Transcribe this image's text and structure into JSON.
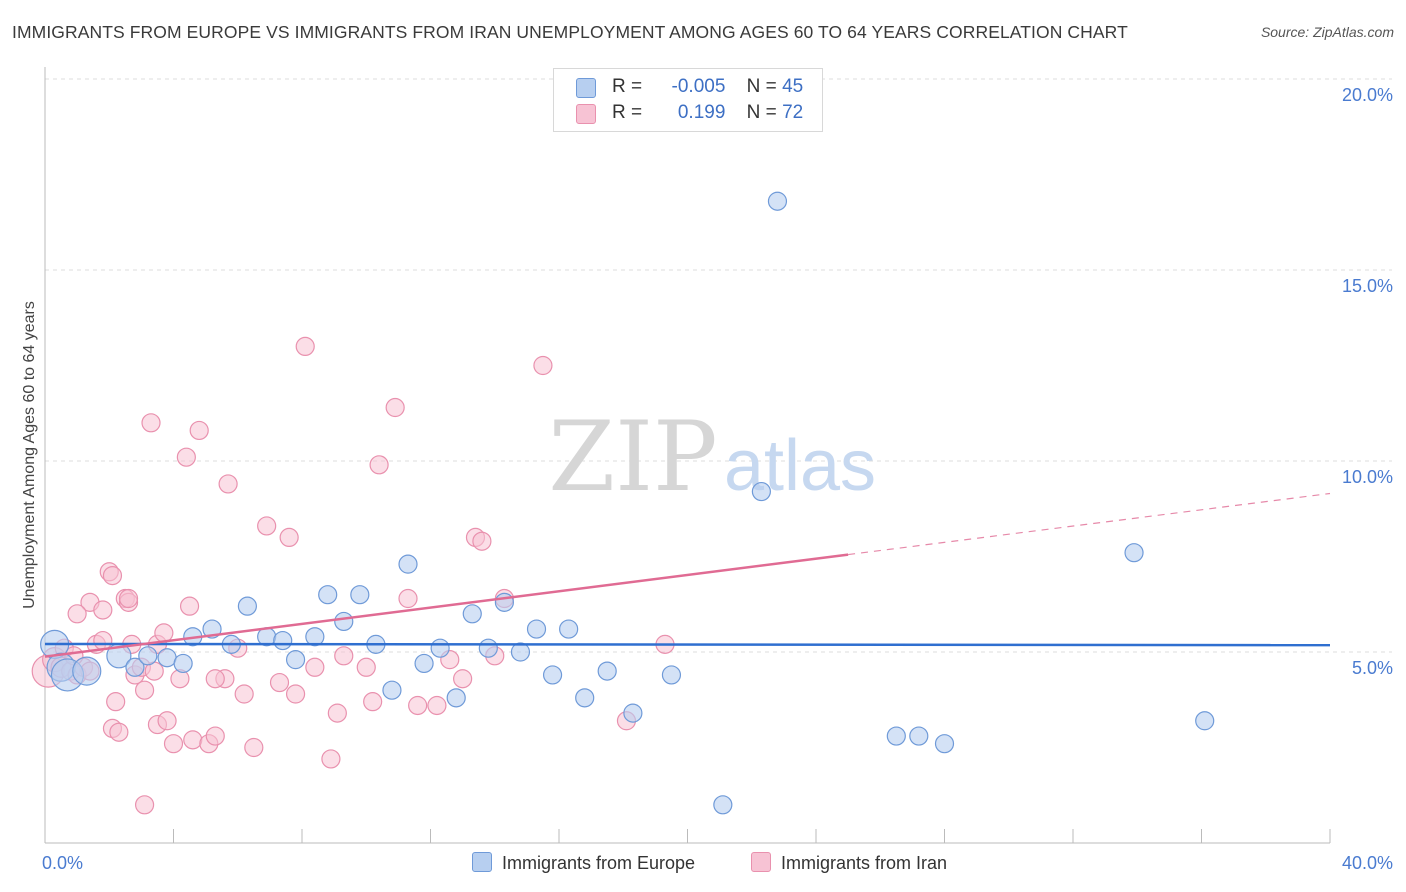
{
  "header": {
    "title": "IMMIGRANTS FROM EUROPE VS IMMIGRANTS FROM IRAN UNEMPLOYMENT AMONG AGES 60 TO 64 YEARS CORRELATION CHART",
    "source": "Source: ZipAtlas.com"
  },
  "legend_top": {
    "row1": {
      "r_label": "R =",
      "r_value": "-0.005",
      "n_label": "N =",
      "n_value": "45"
    },
    "row2": {
      "r_label": "R =",
      "r_value": "0.199",
      "n_label": "N =",
      "n_value": "72"
    }
  },
  "legend_bottom": {
    "europe": "Immigrants from Europe",
    "iran": "Immigrants from Iran"
  },
  "watermark": {
    "zip": "ZIP",
    "atlas": "atlas"
  },
  "colors": {
    "europe_fill": "#b7cff0",
    "europe_stroke": "#6f9ad8",
    "europe_line": "#2f6fd0",
    "iran_fill": "#f7c3d4",
    "iran_stroke": "#e991ae",
    "iran_line": "#e06b93",
    "tick_label": "#4a7bd0",
    "grid": "#dcdcdc"
  },
  "chart_data": {
    "type": "scatter",
    "title": "IMMIGRANTS FROM EUROPE VS IMMIGRANTS FROM IRAN UNEMPLOYMENT AMONG AGES 60 TO 64 YEARS CORRELATION CHART",
    "xlabel": "",
    "ylabel": "Unemployment Among Ages 60 to 64 years",
    "xlim": [
      0,
      40
    ],
    "ylim": [
      0,
      20
    ],
    "x_tick_labels": [
      "0.0%",
      "40.0%"
    ],
    "y_ticks": [
      5,
      10,
      15,
      20
    ],
    "y_tick_labels": [
      "5.0%",
      "10.0%",
      "15.0%",
      "20.0%"
    ],
    "series": [
      {
        "name": "Immigrants from Europe",
        "r": -0.005,
        "n": 45,
        "trend": {
          "x0": 0,
          "y0": 5.21,
          "x1": 40,
          "y1": 5.18
        },
        "points": [
          {
            "x": 0.3,
            "y": 5.2,
            "size": 14
          },
          {
            "x": 0.5,
            "y": 4.6,
            "size": 14
          },
          {
            "x": 0.7,
            "y": 4.4,
            "size": 16
          },
          {
            "x": 1.3,
            "y": 4.5,
            "size": 14
          },
          {
            "x": 2.3,
            "y": 4.9,
            "size": 12
          },
          {
            "x": 2.8,
            "y": 4.6,
            "size": 9
          },
          {
            "x": 3.2,
            "y": 4.9,
            "size": 9
          },
          {
            "x": 3.8,
            "y": 4.85,
            "size": 9
          },
          {
            "x": 4.3,
            "y": 4.7,
            "size": 9
          },
          {
            "x": 4.6,
            "y": 5.4,
            "size": 9
          },
          {
            "x": 5.2,
            "y": 5.6,
            "size": 9
          },
          {
            "x": 5.8,
            "y": 5.2,
            "size": 9
          },
          {
            "x": 6.3,
            "y": 6.2,
            "size": 9
          },
          {
            "x": 6.9,
            "y": 5.4,
            "size": 9
          },
          {
            "x": 7.4,
            "y": 5.3,
            "size": 9
          },
          {
            "x": 7.8,
            "y": 4.8,
            "size": 9
          },
          {
            "x": 8.4,
            "y": 5.4,
            "size": 9
          },
          {
            "x": 8.8,
            "y": 6.5,
            "size": 9
          },
          {
            "x": 9.3,
            "y": 5.8,
            "size": 9
          },
          {
            "x": 9.8,
            "y": 6.5,
            "size": 9
          },
          {
            "x": 10.3,
            "y": 5.2,
            "size": 9
          },
          {
            "x": 10.8,
            "y": 4.0,
            "size": 9
          },
          {
            "x": 11.3,
            "y": 7.3,
            "size": 9
          },
          {
            "x": 11.8,
            "y": 4.7,
            "size": 9
          },
          {
            "x": 12.3,
            "y": 5.1,
            "size": 9
          },
          {
            "x": 12.8,
            "y": 3.8,
            "size": 9
          },
          {
            "x": 13.3,
            "y": 6.0,
            "size": 9
          },
          {
            "x": 13.8,
            "y": 5.1,
            "size": 9
          },
          {
            "x": 14.3,
            "y": 6.3,
            "size": 9
          },
          {
            "x": 14.8,
            "y": 5.0,
            "size": 9
          },
          {
            "x": 15.3,
            "y": 5.6,
            "size": 9
          },
          {
            "x": 15.8,
            "y": 4.4,
            "size": 9
          },
          {
            "x": 16.3,
            "y": 5.6,
            "size": 9
          },
          {
            "x": 16.8,
            "y": 3.8,
            "size": 9
          },
          {
            "x": 17.5,
            "y": 4.5,
            "size": 9
          },
          {
            "x": 18.3,
            "y": 3.4,
            "size": 9
          },
          {
            "x": 19.5,
            "y": 4.4,
            "size": 9
          },
          {
            "x": 21.1,
            "y": 1.0,
            "size": 9
          },
          {
            "x": 22.3,
            "y": 9.2,
            "size": 9
          },
          {
            "x": 22.8,
            "y": 16.8,
            "size": 9
          },
          {
            "x": 26.5,
            "y": 2.8,
            "size": 9
          },
          {
            "x": 27.2,
            "y": 2.8,
            "size": 9
          },
          {
            "x": 28.0,
            "y": 2.6,
            "size": 9
          },
          {
            "x": 33.9,
            "y": 7.6,
            "size": 9
          },
          {
            "x": 36.1,
            "y": 3.2,
            "size": 9
          }
        ]
      },
      {
        "name": "Immigrants from Iran",
        "r": 0.199,
        "n": 72,
        "trend": {
          "x0": 0,
          "y0": 4.88,
          "x1": 25,
          "y1": 7.55
        },
        "trend_extension": {
          "x0": 25,
          "y0": 7.55,
          "x1": 40,
          "y1": 9.15
        },
        "points": [
          {
            "x": 0.1,
            "y": 4.5,
            "size": 16
          },
          {
            "x": 0.3,
            "y": 4.8,
            "size": 12
          },
          {
            "x": 0.5,
            "y": 4.6,
            "size": 10
          },
          {
            "x": 0.6,
            "y": 5.1,
            "size": 9
          },
          {
            "x": 0.8,
            "y": 4.5,
            "size": 9
          },
          {
            "x": 1.0,
            "y": 4.4,
            "size": 9
          },
          {
            "x": 1.2,
            "y": 4.6,
            "size": 9
          },
          {
            "x": 1.4,
            "y": 4.5,
            "size": 9
          },
          {
            "x": 1.4,
            "y": 6.3,
            "size": 9
          },
          {
            "x": 1.6,
            "y": 5.2,
            "size": 9
          },
          {
            "x": 1.8,
            "y": 5.3,
            "size": 9
          },
          {
            "x": 1.8,
            "y": 6.1,
            "size": 9
          },
          {
            "x": 2.0,
            "y": 7.1,
            "size": 9
          },
          {
            "x": 2.1,
            "y": 7.0,
            "size": 9
          },
          {
            "x": 2.1,
            "y": 3.0,
            "size": 9
          },
          {
            "x": 2.2,
            "y": 3.7,
            "size": 9
          },
          {
            "x": 2.3,
            "y": 2.9,
            "size": 9
          },
          {
            "x": 2.5,
            "y": 6.4,
            "size": 9
          },
          {
            "x": 2.6,
            "y": 6.3,
            "size": 9
          },
          {
            "x": 2.7,
            "y": 5.2,
            "size": 9
          },
          {
            "x": 2.8,
            "y": 4.4,
            "size": 9
          },
          {
            "x": 3.0,
            "y": 4.6,
            "size": 9
          },
          {
            "x": 3.1,
            "y": 1.0,
            "size": 9
          },
          {
            "x": 3.1,
            "y": 4.0,
            "size": 9
          },
          {
            "x": 3.3,
            "y": 11.0,
            "size": 9
          },
          {
            "x": 3.5,
            "y": 3.1,
            "size": 9
          },
          {
            "x": 3.5,
            "y": 5.2,
            "size": 9
          },
          {
            "x": 3.7,
            "y": 5.5,
            "size": 9
          },
          {
            "x": 3.8,
            "y": 3.2,
            "size": 9
          },
          {
            "x": 4.0,
            "y": 2.6,
            "size": 9
          },
          {
            "x": 4.2,
            "y": 4.3,
            "size": 9
          },
          {
            "x": 4.4,
            "y": 10.1,
            "size": 9
          },
          {
            "x": 4.6,
            "y": 2.7,
            "size": 9
          },
          {
            "x": 4.8,
            "y": 10.8,
            "size": 9
          },
          {
            "x": 5.1,
            "y": 2.6,
            "size": 9
          },
          {
            "x": 5.3,
            "y": 2.8,
            "size": 9
          },
          {
            "x": 5.6,
            "y": 4.3,
            "size": 9
          },
          {
            "x": 5.7,
            "y": 9.4,
            "size": 9
          },
          {
            "x": 6.0,
            "y": 5.1,
            "size": 9
          },
          {
            "x": 6.2,
            "y": 3.9,
            "size": 9
          },
          {
            "x": 6.5,
            "y": 2.5,
            "size": 9
          },
          {
            "x": 6.9,
            "y": 8.3,
            "size": 9
          },
          {
            "x": 7.3,
            "y": 4.2,
            "size": 9
          },
          {
            "x": 7.6,
            "y": 8.0,
            "size": 9
          },
          {
            "x": 7.8,
            "y": 3.9,
            "size": 9
          },
          {
            "x": 8.1,
            "y": 13.0,
            "size": 9
          },
          {
            "x": 8.4,
            "y": 4.6,
            "size": 9
          },
          {
            "x": 8.9,
            "y": 2.2,
            "size": 9
          },
          {
            "x": 9.1,
            "y": 3.4,
            "size": 9
          },
          {
            "x": 9.3,
            "y": 4.9,
            "size": 9
          },
          {
            "x": 10.0,
            "y": 4.6,
            "size": 9
          },
          {
            "x": 10.2,
            "y": 3.7,
            "size": 9
          },
          {
            "x": 10.4,
            "y": 9.9,
            "size": 9
          },
          {
            "x": 10.9,
            "y": 11.4,
            "size": 9
          },
          {
            "x": 11.3,
            "y": 6.4,
            "size": 9
          },
          {
            "x": 11.6,
            "y": 3.6,
            "size": 9
          },
          {
            "x": 12.2,
            "y": 3.6,
            "size": 9
          },
          {
            "x": 12.6,
            "y": 4.8,
            "size": 9
          },
          {
            "x": 13.0,
            "y": 4.3,
            "size": 9
          },
          {
            "x": 13.4,
            "y": 8.0,
            "size": 9
          },
          {
            "x": 13.6,
            "y": 7.9,
            "size": 9
          },
          {
            "x": 14.0,
            "y": 4.9,
            "size": 9
          },
          {
            "x": 14.3,
            "y": 6.4,
            "size": 9
          },
          {
            "x": 15.5,
            "y": 12.5,
            "size": 9
          },
          {
            "x": 18.1,
            "y": 3.2,
            "size": 9
          },
          {
            "x": 19.3,
            "y": 5.2,
            "size": 9
          },
          {
            "x": 3.4,
            "y": 4.5,
            "size": 9
          },
          {
            "x": 4.5,
            "y": 6.2,
            "size": 9
          },
          {
            "x": 2.6,
            "y": 6.4,
            "size": 9
          },
          {
            "x": 5.3,
            "y": 4.3,
            "size": 9
          },
          {
            "x": 1.0,
            "y": 6.0,
            "size": 9
          },
          {
            "x": 0.9,
            "y": 4.9,
            "size": 9
          }
        ]
      }
    ]
  }
}
